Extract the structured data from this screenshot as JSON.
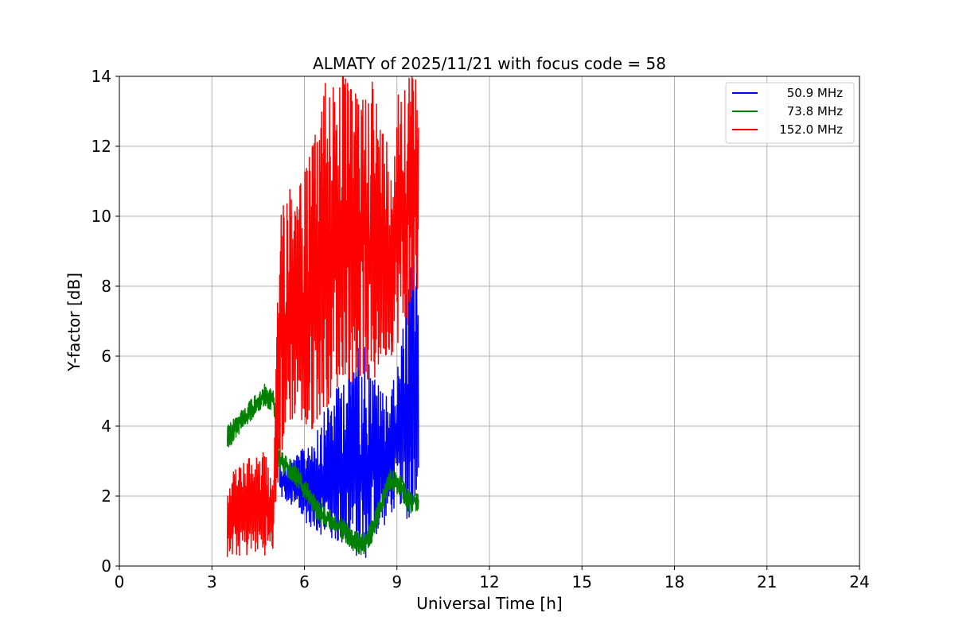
{
  "chart_data": {
    "type": "line",
    "title": "ALMATY of 2025/11/21 with focus code = 58",
    "xlabel": "Universal Time [h]",
    "ylabel": "Y-factor [dB]",
    "xlim": [
      0,
      24
    ],
    "ylim": [
      0,
      14
    ],
    "x_ticks": [
      0,
      3,
      6,
      9,
      12,
      15,
      18,
      21,
      24
    ],
    "y_ticks": [
      0,
      2,
      4,
      6,
      8,
      10,
      12,
      14
    ],
    "grid": true,
    "legend_position": "top-right",
    "series": [
      {
        "name": "50.9 MHz",
        "color": "#0000ff",
        "x": [
          5.2,
          5.5,
          5.8,
          6.1,
          6.4,
          6.7,
          7.0,
          7.3,
          7.6,
          7.9,
          8.2,
          8.5,
          8.8,
          9.1,
          9.4,
          9.7
        ],
        "y_min": [
          2.0,
          1.8,
          1.5,
          1.2,
          1.0,
          0.8,
          0.7,
          0.6,
          0.4,
          0.0,
          0.8,
          1.0,
          1.5,
          1.8,
          1.2,
          2.5
        ],
        "y_max": [
          3.0,
          3.0,
          3.2,
          3.5,
          4.0,
          4.5,
          5.0,
          5.5,
          6.0,
          6.5,
          5.5,
          5.0,
          5.0,
          6.0,
          8.5,
          9.0
        ]
      },
      {
        "name": "73.8 MHz",
        "color": "#008000",
        "x": [
          3.5,
          3.8,
          4.1,
          4.4,
          4.7,
          5.0,
          5.2,
          5.5,
          5.8,
          6.1,
          6.4,
          6.7,
          7.0,
          7.3,
          7.6,
          7.9,
          8.2,
          8.5,
          8.8,
          9.1,
          9.4,
          9.7
        ],
        "y_min": [
          3.3,
          3.7,
          4.0,
          4.3,
          4.6,
          4.4,
          2.7,
          2.5,
          2.2,
          1.8,
          1.3,
          1.1,
          1.0,
          0.7,
          0.4,
          0.3,
          0.7,
          1.5,
          2.2,
          2.0,
          1.5,
          1.6
        ],
        "y_max": [
          4.0,
          4.3,
          4.6,
          4.9,
          5.2,
          5.0,
          3.3,
          3.1,
          2.8,
          2.4,
          1.9,
          1.7,
          1.5,
          1.3,
          1.0,
          0.9,
          1.3,
          2.1,
          2.8,
          2.6,
          2.1,
          2.2
        ]
      },
      {
        "name": "152.0 MHz",
        "color": "#ff0000",
        "x": [
          3.5,
          3.8,
          4.1,
          4.4,
          4.7,
          5.0,
          5.2,
          5.5,
          5.8,
          6.1,
          6.4,
          6.7,
          7.0,
          7.3,
          7.6,
          7.9,
          8.2,
          8.5,
          8.8,
          9.1,
          9.4,
          9.7
        ],
        "y_min": [
          0.2,
          0.3,
          0.3,
          0.4,
          0.3,
          0.5,
          3.0,
          4.0,
          4.5,
          3.5,
          4.2,
          4.5,
          5.0,
          5.5,
          5.2,
          5.5,
          5.0,
          6.0,
          6.0,
          6.5,
          7.0,
          8.0
        ],
        "y_max": [
          2.5,
          2.8,
          3.0,
          3.2,
          3.3,
          2.2,
          10.5,
          11.0,
          11.0,
          11.5,
          12.5,
          14.0,
          14.0,
          14.0,
          13.5,
          13.5,
          14.0,
          12.5,
          12.0,
          14.0,
          14.0,
          14.0
        ]
      }
    ]
  }
}
